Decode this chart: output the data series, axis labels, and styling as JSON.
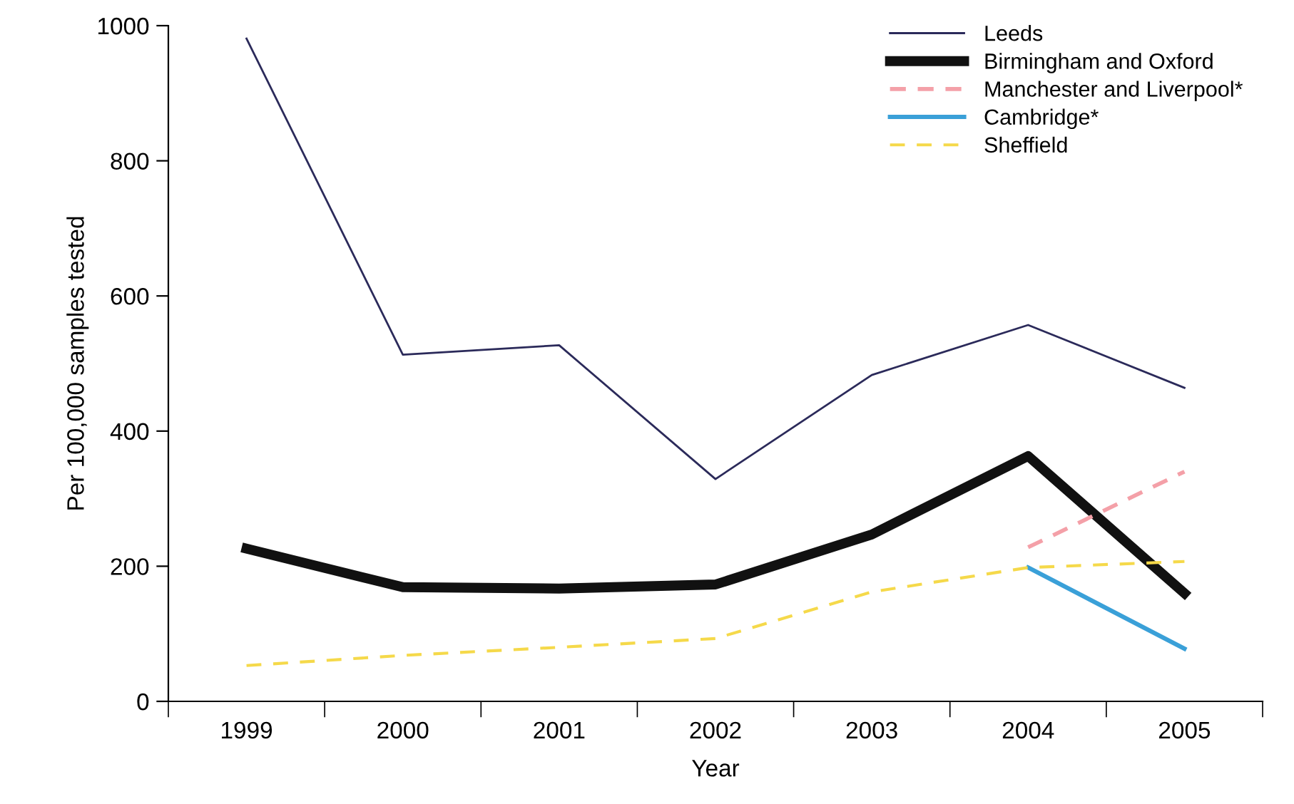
{
  "chart_data": {
    "type": "line",
    "xlabel": "Year",
    "ylabel": "Per 100,000 samples tested",
    "categories": [
      "1999",
      "2000",
      "2001",
      "2002",
      "2003",
      "2004",
      "2005"
    ],
    "ylim": [
      0,
      1000
    ],
    "yticks": [
      0,
      200,
      400,
      600,
      800,
      1000
    ],
    "grid": false,
    "legend": "top right",
    "series": [
      {
        "name": "Leeds",
        "color": "#2b2a5a",
        "line_style": "solid",
        "values": [
          981,
          513,
          527,
          329,
          483,
          557,
          464
        ]
      },
      {
        "name": "Birmingham and Oxford",
        "color": "#111111",
        "line_style": "solid",
        "values": [
          226,
          169,
          167,
          173,
          247,
          363,
          160
        ]
      },
      {
        "name": "Manchester and Liverpool*",
        "color": "#f4a0a8",
        "line_style": "dashed",
        "values": [
          null,
          null,
          null,
          null,
          null,
          228,
          340
        ]
      },
      {
        "name": "Cambridge*",
        "color": "#3aa0d8",
        "line_style": "solid",
        "values": [
          null,
          null,
          null,
          null,
          null,
          198,
          78
        ]
      },
      {
        "name": "Sheffield",
        "color": "#f5d94a",
        "line_style": "dashed",
        "values": [
          53,
          68,
          80,
          93,
          162,
          198,
          207
        ]
      }
    ]
  }
}
